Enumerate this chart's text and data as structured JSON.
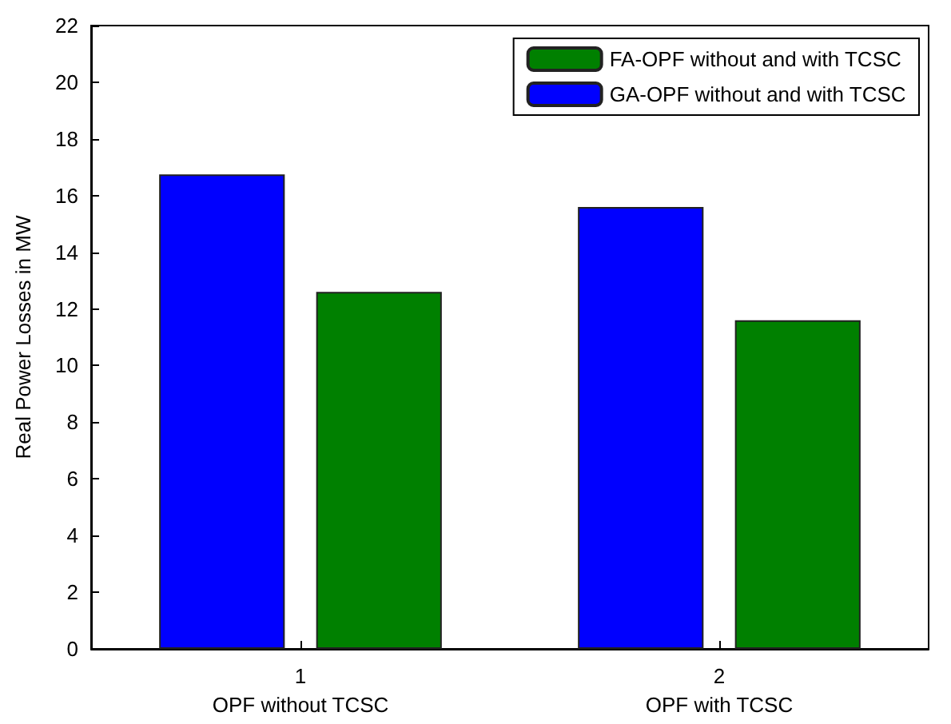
{
  "chart_data": {
    "type": "bar",
    "ylabel": "Real Power Losses in MW",
    "categories": [
      "1\nOPF without TCSC",
      "2\nOPF with TCSC"
    ],
    "series": [
      {
        "name": "GA-OPF without and with TCSC",
        "color": "#0000ff",
        "values": [
          16.75,
          15.6
        ]
      },
      {
        "name": "FA-OPF without and with TCSC",
        "color": "#008000",
        "values": [
          12.6,
          11.6
        ]
      }
    ],
    "ylim": [
      0,
      22
    ],
    "yticks": [
      0,
      2,
      4,
      6,
      8,
      10,
      12,
      14,
      16,
      18,
      20,
      22
    ],
    "grid": false,
    "legend": "top right"
  }
}
